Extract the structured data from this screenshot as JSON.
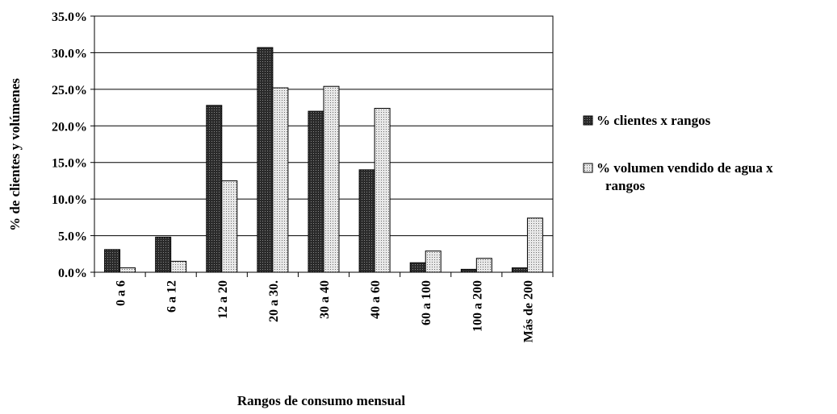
{
  "chart_data": {
    "type": "bar",
    "title": "",
    "xlabel": "Rangos de consumo mensual",
    "ylabel": "% de clientes y volúmenes",
    "categories": [
      "0 a 6",
      "6 a 12",
      "12 a 20",
      "20 a 30.",
      "30 a 40",
      "40 a 60",
      "60 a 100",
      "100 a 200",
      "Más de 200"
    ],
    "series": [
      {
        "name": "% clientes x rangos",
        "values": [
          3.1,
          4.8,
          22.8,
          30.7,
          22.0,
          14.0,
          1.3,
          0.4,
          0.6
        ],
        "pattern": "dark-crosshatch"
      },
      {
        "name": "% volumen vendido de agua  x rangos",
        "values": [
          0.6,
          1.5,
          12.5,
          25.2,
          25.4,
          22.4,
          2.9,
          1.9,
          7.4
        ],
        "pattern": "light-dotted"
      }
    ],
    "ylim": [
      0,
      35
    ],
    "yticks": [
      "0.0%",
      "5.0%",
      "10.0%",
      "15.0%",
      "20.0%",
      "25.0%",
      "30.0%",
      "35.0%"
    ],
    "ytick_values": [
      0,
      5,
      10,
      15,
      20,
      25,
      30,
      35
    ],
    "grid": true,
    "legend_position": "right",
    "colors": {
      "dark_fill": "#404040",
      "light_fill": "#d8d8d8",
      "axis": "#000000",
      "grid": "#000000"
    }
  }
}
